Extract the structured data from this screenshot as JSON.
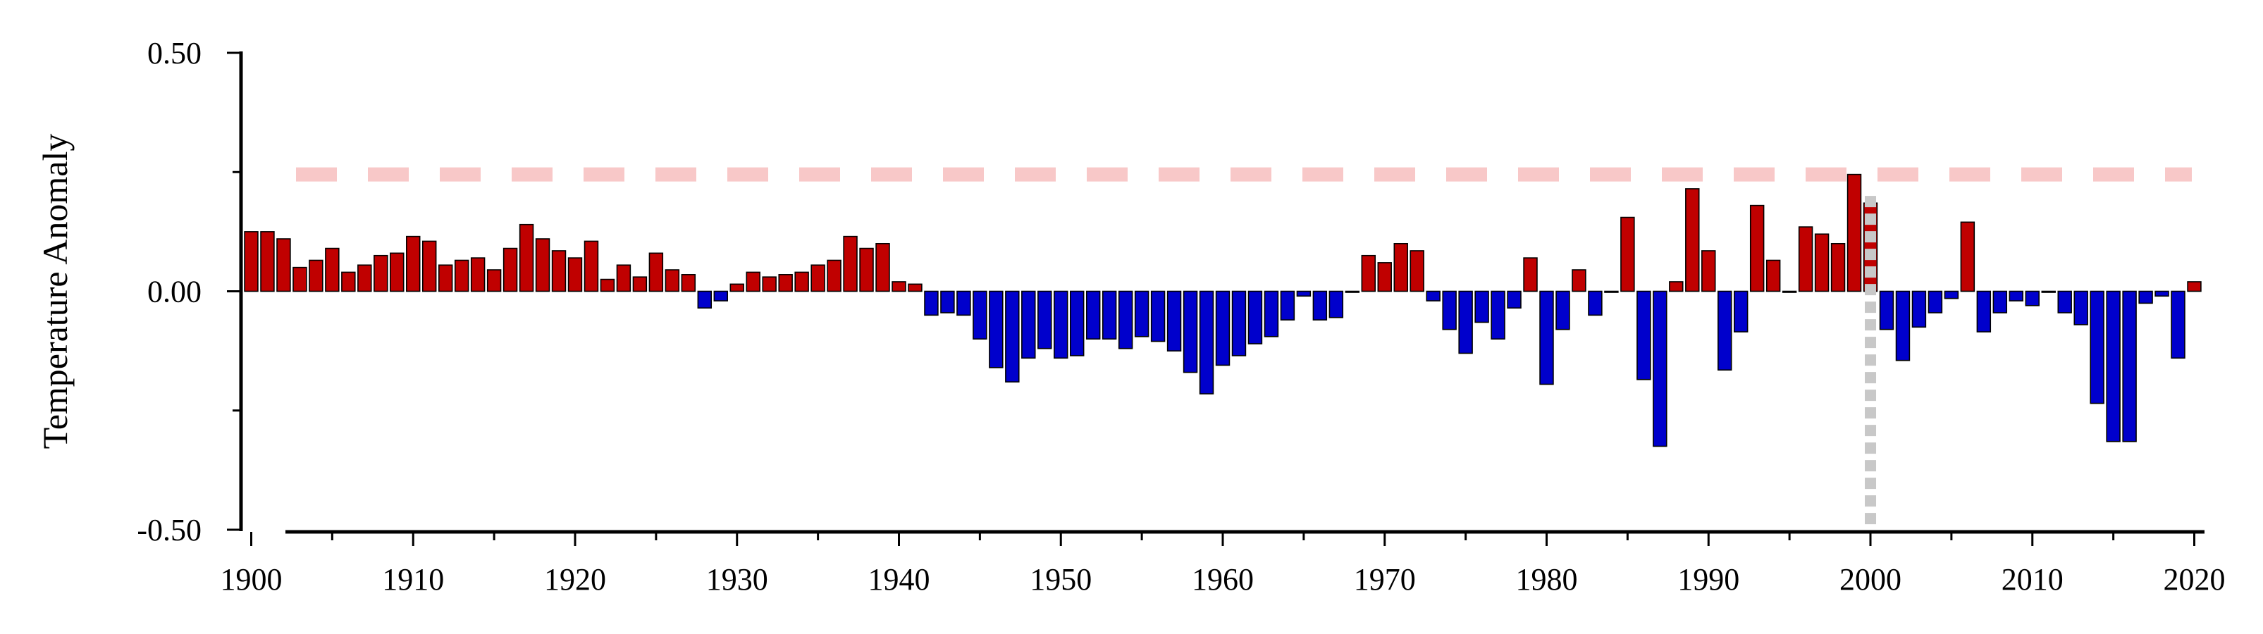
{
  "chart_data": {
    "type": "bar",
    "title": "",
    "xlabel": "",
    "ylabel": "Temperature Anomaly",
    "xlim": [
      1899.5,
      2020.5
    ],
    "ylim": [
      -0.5,
      0.5
    ],
    "x_ticks": [
      1900,
      1910,
      1920,
      1930,
      1940,
      1950,
      1960,
      1970,
      1980,
      1990,
      2000,
      2010,
      2020
    ],
    "x_tick_labels": [
      "1900",
      "1910",
      "1920",
      "1930",
      "1940",
      "1950",
      "1960",
      "1970",
      "1980",
      "1990",
      "2000",
      "2010",
      "2020"
    ],
    "y_ticks": [
      -0.5,
      0.0,
      0.5
    ],
    "y_tick_labels": [
      "-0.50",
      "0.00",
      "0.50"
    ],
    "grid": false,
    "legend": "none",
    "colors": {
      "positive": "#c00000",
      "negative": "#0000cc",
      "reference_line": "#f8c8c8",
      "marker_line": "#c8c8c8"
    },
    "reference_line": {
      "y": 0.245,
      "style": "dashed"
    },
    "marker_line": {
      "x": 2000,
      "y_from": -0.5,
      "y_to": 0.2,
      "style": "dotted"
    },
    "x": [
      1900,
      1901,
      1902,
      1903,
      1904,
      1905,
      1906,
      1907,
      1908,
      1909,
      1910,
      1911,
      1912,
      1913,
      1914,
      1915,
      1916,
      1917,
      1918,
      1919,
      1920,
      1921,
      1922,
      1923,
      1924,
      1925,
      1926,
      1927,
      1928,
      1929,
      1930,
      1931,
      1932,
      1933,
      1934,
      1935,
      1936,
      1937,
      1938,
      1939,
      1940,
      1941,
      1942,
      1943,
      1944,
      1945,
      1946,
      1947,
      1948,
      1949,
      1950,
      1951,
      1952,
      1953,
      1954,
      1955,
      1956,
      1957,
      1958,
      1959,
      1960,
      1961,
      1962,
      1963,
      1964,
      1965,
      1966,
      1967,
      1968,
      1969,
      1970,
      1971,
      1972,
      1973,
      1974,
      1975,
      1976,
      1977,
      1978,
      1979,
      1980,
      1981,
      1982,
      1983,
      1984,
      1985,
      1986,
      1987,
      1988,
      1989,
      1990,
      1991,
      1992,
      1993,
      1994,
      1995,
      1996,
      1997,
      1998,
      1999,
      2000,
      2001,
      2002,
      2003,
      2004,
      2005,
      2006,
      2007,
      2008,
      2009,
      2010,
      2011,
      2012,
      2013,
      2014,
      2015,
      2016,
      2017,
      2018,
      2019,
      2020
    ],
    "values": [
      0.125,
      0.125,
      0.11,
      0.05,
      0.065,
      0.09,
      0.04,
      0.055,
      0.075,
      0.08,
      0.115,
      0.105,
      0.055,
      0.065,
      0.07,
      0.045,
      0.09,
      0.14,
      0.11,
      0.085,
      0.07,
      0.105,
      0.025,
      0.055,
      0.03,
      0.08,
      0.045,
      0.035,
      -0.035,
      -0.02,
      0.015,
      0.04,
      0.03,
      0.035,
      0.04,
      0.055,
      0.065,
      0.115,
      0.09,
      0.1,
      0.02,
      0.015,
      -0.05,
      -0.045,
      -0.05,
      -0.1,
      -0.16,
      -0.19,
      -0.14,
      -0.12,
      -0.14,
      -0.135,
      -0.1,
      -0.1,
      -0.12,
      -0.095,
      -0.105,
      -0.125,
      -0.17,
      -0.215,
      -0.155,
      -0.135,
      -0.11,
      -0.095,
      -0.06,
      -0.01,
      -0.06,
      -0.055,
      0.0,
      0.075,
      0.06,
      0.1,
      0.085,
      -0.02,
      -0.08,
      -0.13,
      -0.065,
      -0.1,
      -0.035,
      0.07,
      -0.195,
      -0.08,
      0.045,
      -0.05,
      0.0,
      0.155,
      -0.185,
      -0.325,
      0.02,
      0.215,
      0.085,
      -0.165,
      -0.085,
      0.18,
      0.065,
      0.0,
      0.135,
      0.12,
      0.1,
      0.245,
      0.185,
      -0.08,
      -0.145,
      -0.075,
      -0.045,
      -0.015,
      0.145,
      -0.085,
      -0.045,
      -0.02,
      -0.03,
      0.0,
      -0.045,
      -0.07,
      -0.235,
      -0.315,
      -0.315,
      -0.025,
      -0.01,
      -0.14,
      0.02
    ]
  }
}
